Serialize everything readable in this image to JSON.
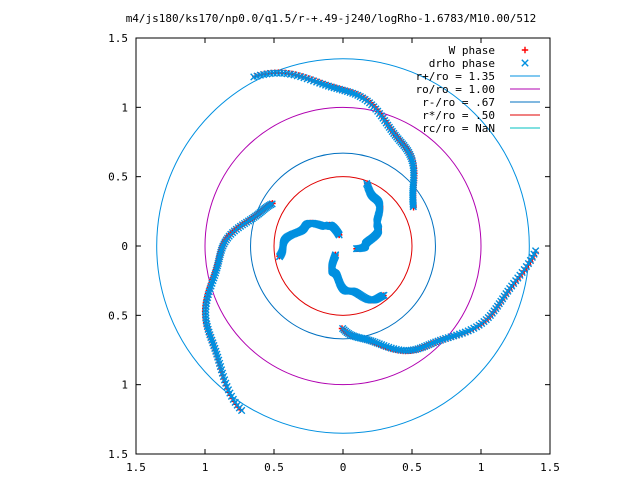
{
  "chart_data": {
    "type": "scatter",
    "title": "m4/js180/ks170/np0.0/q1.5/r-+.49-j240/logRho-1.6783/M10.00/512",
    "xlabel": "",
    "ylabel": "",
    "xlim": [
      -1.5,
      1.5
    ],
    "ylim": [
      -1.5,
      1.5
    ],
    "grid": false,
    "legend_position": "top-right",
    "x_tick_labels": [
      "1.5",
      "1",
      "0.5",
      "0",
      "0.5",
      "1",
      "1.5"
    ],
    "y_tick_labels": [
      "1.5",
      "1",
      "0.5",
      "0",
      "0.5",
      "1",
      "1.5"
    ],
    "tick_values": [
      -1.5,
      -1,
      -0.5,
      0,
      0.5,
      1,
      1.5
    ],
    "series": [
      {
        "name": "W phase",
        "marker": "plus",
        "color": "#ff0000",
        "arms": [
          {
            "r0": 1.38,
            "r1": 0.58,
            "theta0": 2.05,
            "sweep": -1.55
          },
          {
            "r0": 1.38,
            "r1": 0.58,
            "theta0": 4.15,
            "sweep": -1.55
          },
          {
            "r0": 1.38,
            "r1": 0.58,
            "theta0": 6.25,
            "sweep": -1.55
          },
          {
            "r0": 0.48,
            "r1": 0.1,
            "theta0": 1.2,
            "sweep": -1.4
          },
          {
            "r0": 0.48,
            "r1": 0.1,
            "theta0": 3.3,
            "sweep": -1.4
          },
          {
            "r0": 0.48,
            "r1": 0.1,
            "theta0": 5.4,
            "sweep": -1.4
          }
        ]
      },
      {
        "name": "drho phase",
        "marker": "cross",
        "color": "#0090e0",
        "arms": [
          {
            "r0": 1.38,
            "r1": 0.58,
            "theta0": 2.05,
            "sweep": -1.55
          },
          {
            "r0": 1.38,
            "r1": 0.58,
            "theta0": 4.15,
            "sweep": -1.55
          },
          {
            "r0": 1.38,
            "r1": 0.58,
            "theta0": 6.25,
            "sweep": -1.55
          },
          {
            "r0": 0.48,
            "r1": 0.1,
            "theta0": 1.2,
            "sweep": -1.4
          },
          {
            "r0": 0.48,
            "r1": 0.1,
            "theta0": 3.3,
            "sweep": -1.4
          },
          {
            "r0": 0.48,
            "r1": 0.1,
            "theta0": 5.4,
            "sweep": -1.4
          }
        ]
      }
    ],
    "circles": [
      {
        "name": "r+/ro = 1.35",
        "radius": 1.35,
        "color": "#0090e0"
      },
      {
        "name": "ro/ro = 1.00",
        "radius": 1.0,
        "color": "#b000b0"
      },
      {
        "name": "r-/ro = .67",
        "radius": 0.67,
        "color": "#0070c0"
      },
      {
        "name": "r*/ro = .50",
        "radius": 0.5,
        "color": "#e00000"
      },
      {
        "name": "rc/ro = NaN",
        "radius": null,
        "color": "#00c0c0"
      }
    ]
  }
}
